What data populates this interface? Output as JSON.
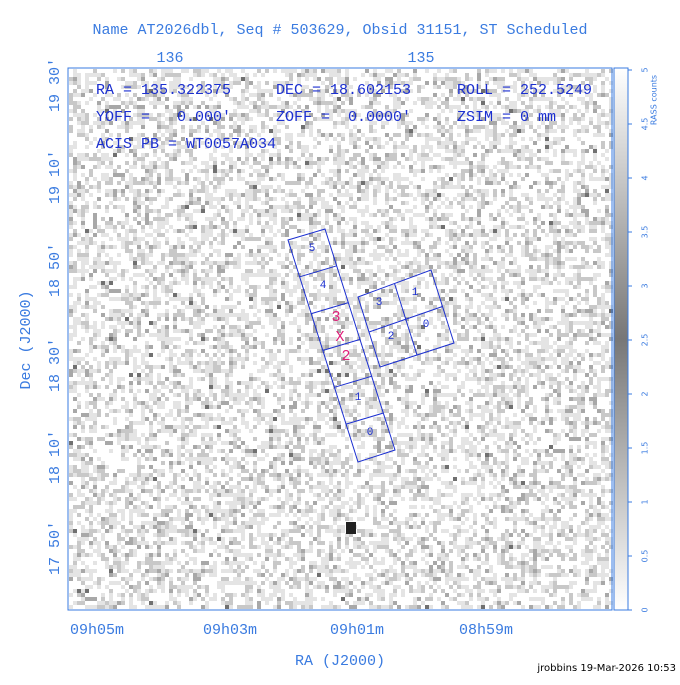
{
  "title": "Name AT2026dbl, Seq # 503629, Obsid 31151, ST Scheduled",
  "top_ticks": [
    "136",
    "135"
  ],
  "bottom_ticks": [
    "09h05m",
    "09h03m",
    "09h01m",
    "08h59m"
  ],
  "left_ticks": [
    "19 30'",
    "19 10'",
    "18 50'",
    "18 30'",
    "18 10'",
    "17 50'"
  ],
  "x_label": "RA (J2000)",
  "y_label": "Dec (J2000)",
  "info": [
    "RA = 135.322375",
    "DEC = 18.602153",
    "ROLL = 252.5249",
    "YOFF =   0.000'",
    "ZOFF =  0.0000'",
    "ZSIM = 0 mm",
    "ACIS PB = WT0057A034"
  ],
  "chips": [
    "5",
    "4",
    "3",
    "1",
    "2",
    "0",
    "1",
    "0"
  ],
  "target": [
    "3",
    "X",
    "2"
  ],
  "colorbar": {
    "label": "RASS counts",
    "ticks": [
      0,
      0.5,
      1,
      1.5,
      2,
      2.5,
      3,
      3.5,
      4,
      4.5,
      5
    ]
  },
  "footer": "jrobbins 19-Mar-2026 10:53"
}
